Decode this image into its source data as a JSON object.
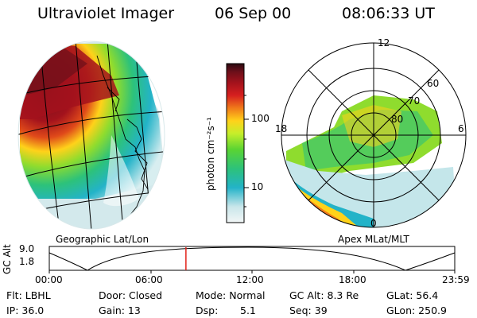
{
  "header": {
    "instrument": "Ultraviolet Imager",
    "date": "06 Sep 00",
    "time": "08:06:33 UT"
  },
  "colorbar": {
    "unit_label": "photon cm⁻²s⁻¹",
    "ticks": [
      "100",
      "10"
    ],
    "colors": [
      "#2a0a10",
      "#6b0f1a",
      "#a3121c",
      "#d61f1f",
      "#f07a1a",
      "#ffd21a",
      "#c6ee2a",
      "#5ad433",
      "#2dc27a",
      "#23b3c8",
      "#c9e6ea",
      "#f2f6f6"
    ]
  },
  "left_panel": {
    "caption": "Geographic Lat/Lon"
  },
  "right_panel": {
    "caption": "Apex MLat/MLT",
    "mlt_labels": {
      "top": "12",
      "left": "18",
      "right": "6",
      "bottom": "0"
    },
    "lat_labels": [
      "60",
      "70",
      "80"
    ]
  },
  "orbit": {
    "ylabel": "GC Alt",
    "yticks": [
      "9.0",
      "1.8"
    ],
    "xticks": [
      "00:00",
      "06:00",
      "12:00",
      "18:00",
      "23:59"
    ],
    "marker_time_fraction": 0.337
  },
  "status": {
    "flt": "Flt: LBHL",
    "ip": "IP: 36.0",
    "door": "Door: Closed",
    "gain": "Gain: 13",
    "mode": "Mode: Normal",
    "dsp_label": "Dsp:",
    "dsp_value": "5.1",
    "gc_alt": "GC Alt: 8.3 Re",
    "seq": "Seq: 39",
    "glat": "GLat:  56.4",
    "glon": "GLon: 250.9"
  }
}
